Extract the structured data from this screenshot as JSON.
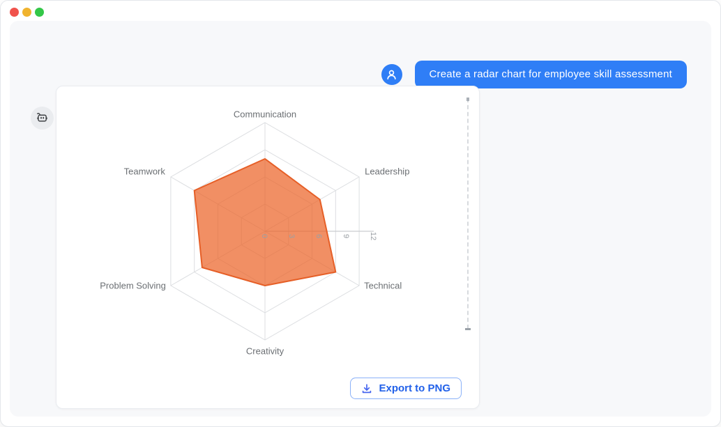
{
  "window": {
    "traffic_lights": {
      "close_color": "#f0524c",
      "minimize_color": "#f0b32e",
      "zoom_color": "#33c748"
    }
  },
  "colors": {
    "accent_blue": "#2f7ef6",
    "panel_background": "#f7f8fa",
    "export_button_text": "#2261e9",
    "export_button_border": "#8ab1f8",
    "export_icon": "#4766ef"
  },
  "chat": {
    "user_message": "Create a radar chart for employee skill assessment",
    "user_avatar_icon": "person-icon",
    "bot_avatar_icon": "robot-icon"
  },
  "chart_data": {
    "type": "radar",
    "grid_shape": "hexagon",
    "categories": [
      "Communication",
      "Leadership",
      "Technical",
      "Creativity",
      "Problem Solving",
      "Teamwork"
    ],
    "values": [
      8,
      7,
      9,
      6,
      8,
      9
    ],
    "axis_max": 12,
    "ticks": [
      0,
      3,
      6,
      9,
      12
    ],
    "rings": 4,
    "colors": {
      "fill": "rgba(235,100,40,0.72)",
      "stroke": "#e65f27",
      "grid": "#dcdee1",
      "axis_line": "#c9ccd0",
      "label": "#6b6f73",
      "tick": "#9ba0a5"
    }
  },
  "export_button": {
    "label": "Export to PNG",
    "icon": "download-icon"
  }
}
